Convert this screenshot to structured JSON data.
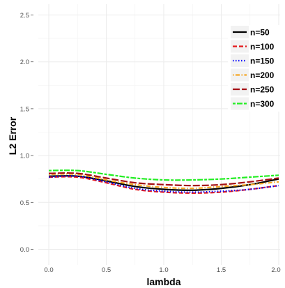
{
  "chart_data": {
    "type": "line",
    "xlabel": "lambda",
    "ylabel": "L2 Error",
    "xlim": [
      -0.1,
      2.0
    ],
    "ylim": [
      -0.1,
      2.6
    ],
    "x_ticks": [
      "0.0",
      "0.5",
      "1.0",
      "1.5",
      "2.0"
    ],
    "y_ticks": [
      "0.0",
      "0.5",
      "1.0",
      "1.5",
      "2.0",
      "2.5"
    ],
    "grid": true,
    "legend_position": "top-right",
    "x": [
      0.0,
      0.25,
      0.5,
      0.75,
      1.0,
      1.25,
      1.5,
      1.75,
      2.0
    ],
    "series": [
      {
        "name": "n=50",
        "color": "#000000",
        "dash": "solid",
        "values": [
          0.78,
          0.78,
          0.73,
          0.67,
          0.64,
          0.63,
          0.65,
          0.69,
          0.75
        ]
      },
      {
        "name": "n=100",
        "color": "#e41a1c",
        "dash": "dashed",
        "values": [
          0.77,
          0.77,
          0.71,
          0.64,
          0.61,
          0.6,
          0.61,
          0.64,
          0.68
        ]
      },
      {
        "name": "n=150",
        "color": "#0000ff",
        "dash": "dotted",
        "values": [
          0.77,
          0.78,
          0.72,
          0.65,
          0.62,
          0.61,
          0.62,
          0.64,
          0.68
        ]
      },
      {
        "name": "n=200",
        "color": "#f5a623",
        "dash": "dotdash",
        "values": [
          0.8,
          0.8,
          0.74,
          0.69,
          0.66,
          0.65,
          0.67,
          0.69,
          0.72
        ]
      },
      {
        "name": "n=250",
        "color": "#a50f15",
        "dash": "longdash",
        "values": [
          0.81,
          0.81,
          0.76,
          0.71,
          0.69,
          0.68,
          0.69,
          0.72,
          0.76
        ]
      },
      {
        "name": "n=300",
        "color": "#22ee22",
        "dash": "twodash",
        "values": [
          0.84,
          0.84,
          0.8,
          0.76,
          0.74,
          0.74,
          0.75,
          0.77,
          0.79
        ]
      }
    ]
  }
}
